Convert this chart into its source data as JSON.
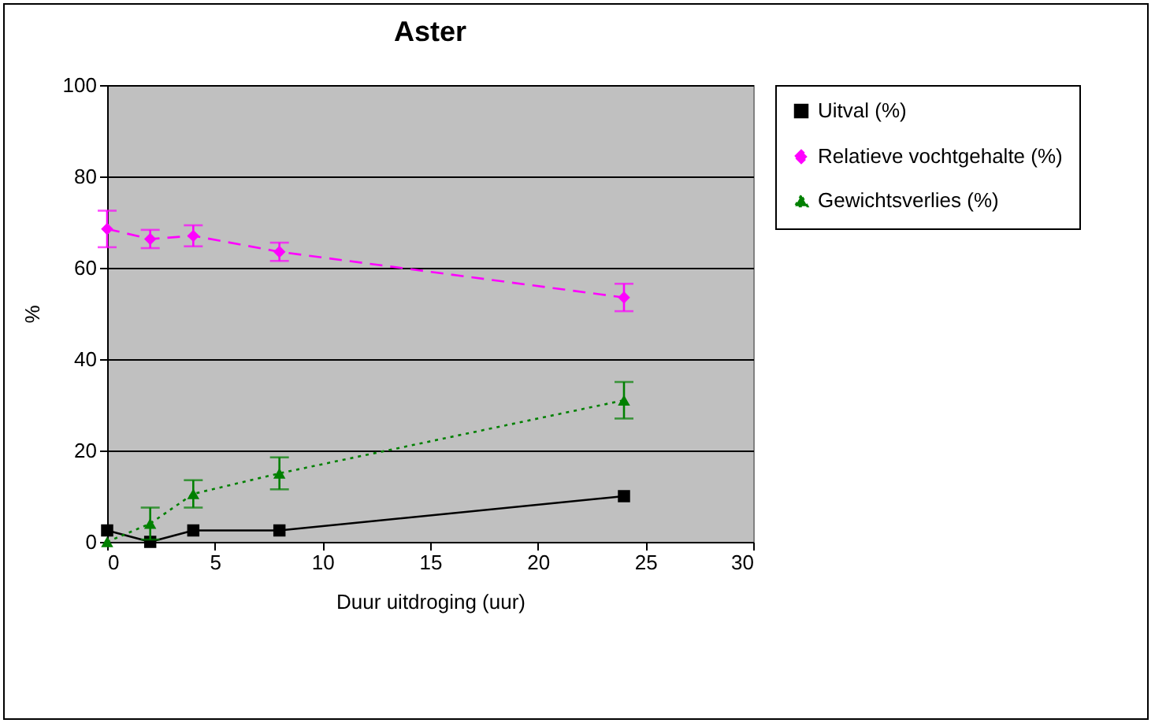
{
  "chart_data": {
    "type": "line",
    "title": "Aster",
    "xlabel": "Duur uitdroging (uur)",
    "ylabel": "%",
    "x": [
      0,
      2,
      4,
      8,
      24
    ],
    "series": [
      {
        "name": "Uitval (%)",
        "color": "#000000",
        "marker": "square",
        "line_style": "solid",
        "values": [
          2.5,
          0,
          2.5,
          2.5,
          10
        ]
      },
      {
        "name": "Relatieve vochtgehalte (%)",
        "color": "#ff00ff",
        "marker": "diamond",
        "line_style": "dashed",
        "values": [
          68.5,
          66.3,
          67,
          63.5,
          53.5
        ],
        "errors": [
          4,
          2,
          2.3,
          2,
          3
        ]
      },
      {
        "name": "Gewichtsverlies (%)",
        "color": "#008000",
        "marker": "triangle",
        "line_style": "dotted",
        "values": [
          0,
          4,
          10.5,
          15,
          31
        ],
        "errors": [
          null,
          3.5,
          3,
          3.5,
          4
        ]
      }
    ],
    "xlim": [
      0,
      30
    ],
    "xticks": [
      0,
      5,
      10,
      15,
      20,
      25,
      30
    ],
    "ylim": [
      0,
      100
    ],
    "yticks": [
      0,
      20,
      40,
      60,
      80,
      100
    ],
    "grid": "y",
    "legend": "right"
  }
}
